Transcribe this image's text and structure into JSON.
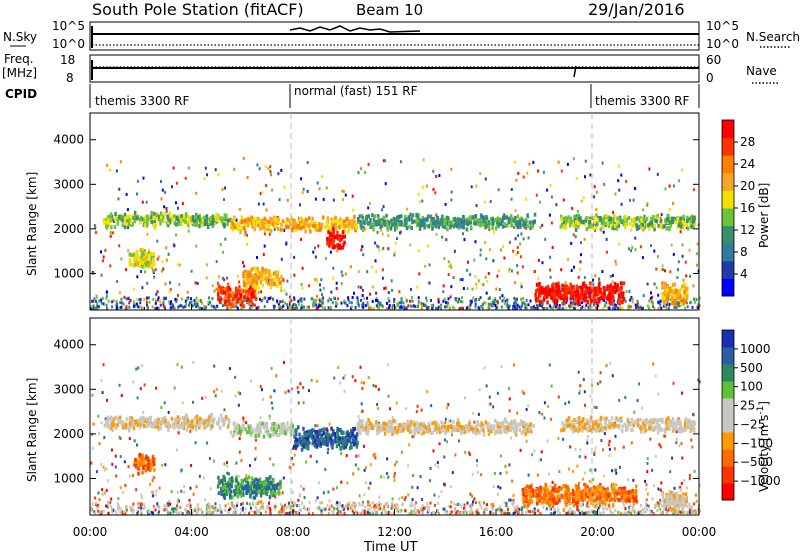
{
  "header": {
    "station": "South Pole Station (fitACF)",
    "beam": "Beam 10",
    "date": "29/Jan/2016"
  },
  "panels": {
    "nsky": {
      "left_label": "N.Sky",
      "right_label": "N.Search",
      "ticks_left": [
        "10^5",
        "10^0"
      ],
      "ticks_right": [
        "10^5",
        "10^0"
      ]
    },
    "freq": {
      "left_label": "Freq.",
      "left_unit": "[MHz]",
      "right_label": "Nave",
      "ticks_left": [
        "18",
        "8"
      ],
      "ticks_right": [
        "60",
        "0"
      ]
    },
    "cpid": {
      "label": "CPID",
      "segments": [
        {
          "name": "themis 3300 RF",
          "start": 0,
          "end": 8
        },
        {
          "name": "normal (fast) 151 RF",
          "start": 8,
          "end": 20
        },
        {
          "name": "themis 3300 RF",
          "start": 20,
          "end": 24
        }
      ]
    }
  },
  "chart_data": [
    {
      "type": "heatmap",
      "quantity": "Power",
      "ylabel": "Slant Range [km]",
      "ylim": [
        180,
        4600
      ],
      "yticks": [
        1000,
        2000,
        3000,
        4000
      ],
      "xlim": [
        0,
        24
      ],
      "colorbar": {
        "label": "Power [dB]",
        "ticks": [
          "28",
          "24",
          "20",
          "16",
          "12",
          "8",
          "4"
        ],
        "colors": [
          "#0000ff",
          "#1f3da8",
          "#2e7d9e",
          "#3a8c6e",
          "#69c43a",
          "#f2e100",
          "#f5a623",
          "#ff7f00",
          "#ff3300",
          "#ff0000"
        ]
      },
      "features": [
        {
          "t0": 0.5,
          "t1": 5.5,
          "r": 2200,
          "kind": "band",
          "level": 4
        },
        {
          "t0": 5.5,
          "t1": 10.5,
          "r": 2100,
          "kind": "band",
          "level": 6
        },
        {
          "t0": 9.3,
          "t1": 10.0,
          "r": 1750,
          "kind": "blob",
          "level": 9
        },
        {
          "t0": 10.5,
          "t1": 17.5,
          "r": 2150,
          "kind": "band",
          "level": 3
        },
        {
          "t0": 18.5,
          "t1": 23.8,
          "r": 2150,
          "kind": "band",
          "level": 4
        },
        {
          "t0": 5.0,
          "t1": 6.5,
          "r": 500,
          "kind": "blob",
          "level": 8
        },
        {
          "t0": 6.0,
          "t1": 7.5,
          "r": 900,
          "kind": "blob",
          "level": 6
        },
        {
          "t0": 17.5,
          "t1": 21.0,
          "r": 550,
          "kind": "blob",
          "level": 9
        },
        {
          "t0": 1.5,
          "t1": 2.5,
          "r": 1300,
          "kind": "blob",
          "level": 5
        },
        {
          "t0": 22.5,
          "t1": 23.5,
          "r": 550,
          "kind": "blob",
          "level": 6
        }
      ]
    },
    {
      "type": "heatmap",
      "quantity": "Velocity",
      "ylabel": "Slant Range [km]",
      "ylim": [
        180,
        4600
      ],
      "yticks": [
        1000,
        2000,
        3000,
        4000
      ],
      "xlim": [
        0,
        24
      ],
      "xlabel": "Time UT",
      "xticks": [
        "00:00",
        "04:00",
        "08:00",
        "12:00",
        "16:00",
        "20:00",
        "00:00"
      ],
      "colorbar": {
        "label": "Velocity [m s",
        "label_sup": "-1",
        "label_end": "]",
        "ticks": [
          "1000",
          "500",
          "100",
          "25",
          "−25",
          "−100",
          "−500",
          "−1000"
        ],
        "colors": [
          "#ff0000",
          "#ff3300",
          "#ff6a00",
          "#ff9900",
          "#c8c8c0",
          "#c8c8c0",
          "#5ac234",
          "#2e8a5e",
          "#2a5fa8",
          "#1a2fb0"
        ]
      },
      "features": [
        {
          "t0": 0.5,
          "t1": 5.5,
          "r": 2250,
          "kind": "band",
          "level": 4
        },
        {
          "t0": 5.5,
          "t1": 8.0,
          "r": 2100,
          "kind": "band",
          "level": 5
        },
        {
          "t0": 8.0,
          "t1": 10.5,
          "r": 1900,
          "kind": "blob",
          "level": 8
        },
        {
          "t0": 5.0,
          "t1": 7.5,
          "r": 800,
          "kind": "blob",
          "level": 7
        },
        {
          "t0": 1.7,
          "t1": 2.5,
          "r": 1350,
          "kind": "blob",
          "level": 2
        },
        {
          "t0": 10.5,
          "t1": 17.5,
          "r": 2150,
          "kind": "band",
          "level": 4
        },
        {
          "t0": 17.0,
          "t1": 21.5,
          "r": 620,
          "kind": "blob",
          "level": 2
        },
        {
          "t0": 18.5,
          "t1": 23.8,
          "r": 2200,
          "kind": "band",
          "level": 4
        },
        {
          "t0": 22.5,
          "t1": 23.5,
          "r": 500,
          "kind": "blob",
          "level": 4
        }
      ]
    }
  ]
}
